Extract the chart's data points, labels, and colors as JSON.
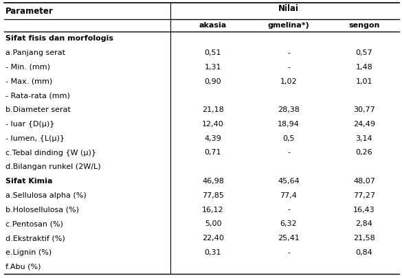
{
  "col_headers_nilai": "Nilai",
  "col_headers_sub": [
    "akasia",
    "gmelina*)",
    "sengon"
  ],
  "col_header_param": "Parameter",
  "rows": [
    {
      "param": "Sifat fisis dan morfologis",
      "bold": true,
      "akasia": "",
      "gmelina": "",
      "sengon": ""
    },
    {
      "param": "a.Panjang serat",
      "bold": false,
      "akasia": "0,51",
      "gmelina": "-",
      "sengon": "0,57"
    },
    {
      "param": "- Min. (mm)",
      "bold": false,
      "akasia": "1,31",
      "gmelina": "-",
      "sengon": "1,48"
    },
    {
      "param": "- Max. (mm)",
      "bold": false,
      "akasia": "0,90",
      "gmelina": "1,02",
      "sengon": "1,01"
    },
    {
      "param": "- Rata-rata (mm)",
      "bold": false,
      "akasia": "",
      "gmelina": "",
      "sengon": ""
    },
    {
      "param": "b.Diameter serat",
      "bold": false,
      "akasia": "21,18",
      "gmelina": "28,38",
      "sengon": "30,77"
    },
    {
      "param": "- luar {D(μ)}",
      "bold": false,
      "akasia": "12,40",
      "gmelina": "18,94",
      "sengon": "24,49"
    },
    {
      "param": "- lumen, {L(μ)}",
      "bold": false,
      "akasia": "4,39",
      "gmelina": "0,5",
      "sengon": "3,14"
    },
    {
      "param": "c.Tebal dinding {W (μ)}",
      "bold": false,
      "akasia": "0,71",
      "gmelina": "-",
      "sengon": "0,26"
    },
    {
      "param": "d.Bilangan runkel (2W/L)",
      "bold": false,
      "akasia": "",
      "gmelina": "",
      "sengon": ""
    },
    {
      "param": "Sifat Kimia",
      "bold": true,
      "akasia": "46,98",
      "gmelina": "45,64",
      "sengon": "48,07"
    },
    {
      "param": "a.Sellulosa alpha (%)",
      "bold": false,
      "akasia": "77,85",
      "gmelina": "77,4",
      "sengon": "77,27"
    },
    {
      "param": "b.Holosellulosa (%)",
      "bold": false,
      "akasia": "16,12",
      "gmelina": "-",
      "sengon": "16,43"
    },
    {
      "param": "c.Pentosan (%)",
      "bold": false,
      "akasia": "5,00",
      "gmelina": "6,32",
      "sengon": "2,84"
    },
    {
      "param": "d.Ekstraktif (%)",
      "bold": false,
      "akasia": "22,40",
      "gmelina": "25,41",
      "sengon": "21,58"
    },
    {
      "param": "e.Lignin (%)",
      "bold": false,
      "akasia": "0,31",
      "gmelina": "-",
      "sengon": "0,84"
    },
    {
      "param": "f.Abu (%)",
      "bold": false,
      "akasia": "",
      "gmelina": "",
      "sengon": ""
    }
  ],
  "bg_color": "#ffffff",
  "text_color": "#000000",
  "font_size": 8.0,
  "header_font_size": 8.5,
  "fig_width": 5.85,
  "fig_height": 4.05,
  "dpi": 100
}
